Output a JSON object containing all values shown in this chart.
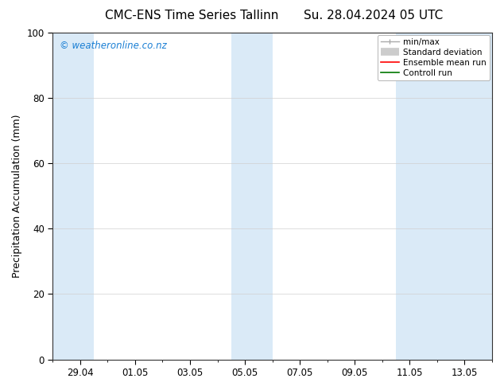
{
  "title_left": "CMC-ENS Time Series Tallinn",
  "title_right": "Su. 28.04.2024 05 UTC",
  "ylabel": "Precipitation Accumulation (mm)",
  "ylim": [
    0,
    100
  ],
  "yticks": [
    0,
    20,
    40,
    60,
    80,
    100
  ],
  "xtick_labels": [
    "29.04",
    "01.05",
    "03.05",
    "05.05",
    "07.05",
    "09.05",
    "11.05",
    "13.05"
  ],
  "background_color": "#ffffff",
  "plot_bg_color": "#ffffff",
  "shaded_band_color": "#daeaf7",
  "watermark_text": "© weatheronline.co.nz",
  "watermark_color": "#1a7fd4",
  "legend_entries": [
    "min/max",
    "Standard deviation",
    "Ensemble mean run",
    "Controll run"
  ],
  "legend_colors_line": [
    "#aaaaaa",
    "#cccccc",
    "#ff0000",
    "#007700"
  ],
  "title_fontsize": 11,
  "axis_fontsize": 9,
  "tick_fontsize": 8.5
}
